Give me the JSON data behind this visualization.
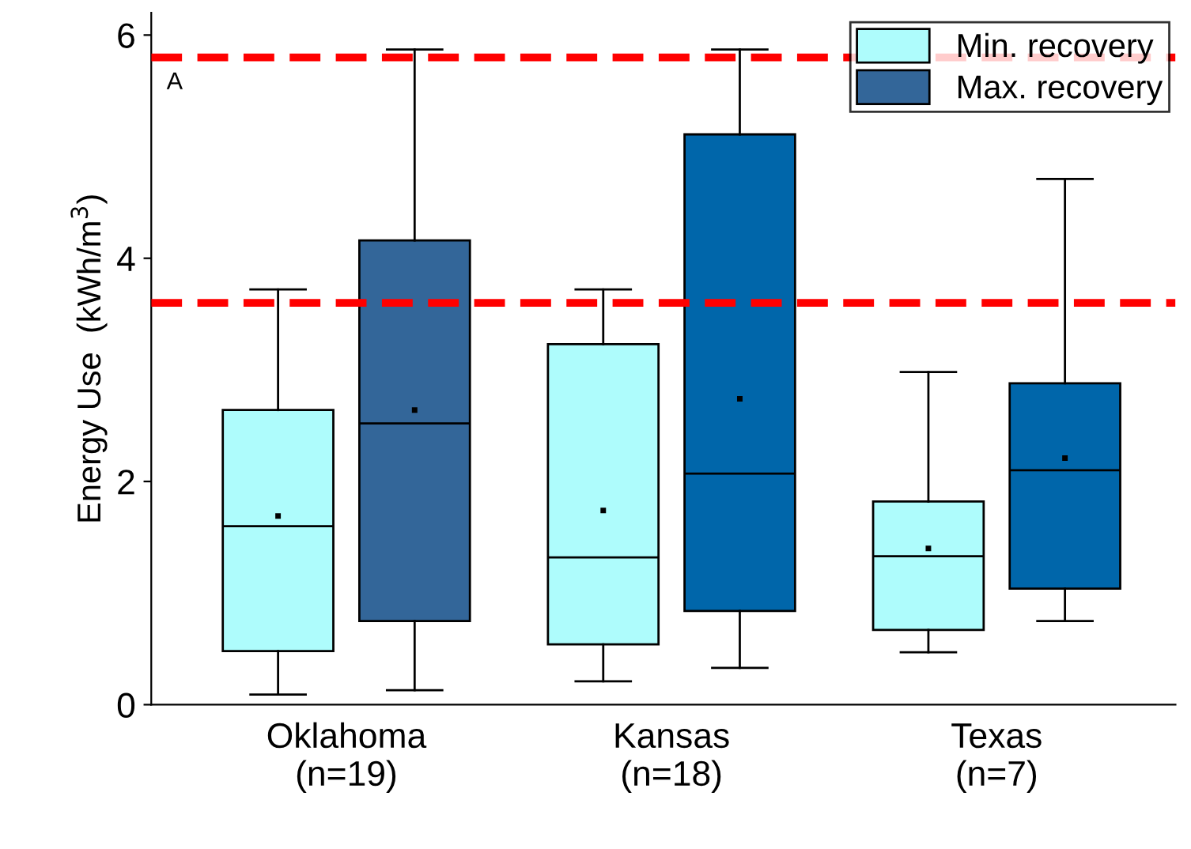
{
  "chart_data": {
    "type": "box",
    "ylabel": "Energy Use  (kWh/m$^{3}$)",
    "categories": [
      "Oklahoma\n(n=19)",
      "Kansas\n(n=18)",
      "Texas\n(n=7)"
    ],
    "series": [
      {
        "name": "Min. recovery",
        "color": "#aefcfc",
        "boxes": [
          {
            "low": 0.09,
            "q1": 0.48,
            "median": 1.6,
            "q3": 2.64,
            "high": 3.72,
            "mean": 1.69
          },
          {
            "low": 0.21,
            "q1": 0.54,
            "median": 1.32,
            "q3": 3.23,
            "high": 3.72,
            "mean": 1.74
          },
          {
            "low": 0.47,
            "q1": 0.67,
            "median": 1.33,
            "q3": 1.82,
            "high": 2.98,
            "mean": 1.4
          }
        ]
      },
      {
        "name": "Max. recovery",
        "color": "#336699",
        "colors": [
          "#336699",
          "#0066aa",
          "#0066aa"
        ],
        "boxes": [
          {
            "low": 0.13,
            "q1": 0.75,
            "median": 2.52,
            "q3": 4.16,
            "high": 5.87,
            "mean": 2.64
          },
          {
            "low": 0.33,
            "q1": 0.84,
            "median": 2.07,
            "q3": 5.11,
            "high": 5.87,
            "mean": 2.74
          },
          {
            "low": 0.75,
            "q1": 1.04,
            "median": 2.1,
            "q3": 2.88,
            "high": 4.71,
            "mean": 2.21
          }
        ]
      }
    ],
    "ylim": [
      0,
      6.2
    ],
    "yticks": [
      0,
      2,
      4,
      6
    ],
    "ref_lines": [
      {
        "axis": "y",
        "value": 5.8,
        "color": "#ff0000",
        "line_style": "dashed"
      },
      {
        "axis": "y",
        "value": 3.6,
        "color": "#ff0000",
        "line_style": "dashed"
      }
    ],
    "annotations": [
      "A"
    ],
    "legend": "top right",
    "grid": false
  }
}
